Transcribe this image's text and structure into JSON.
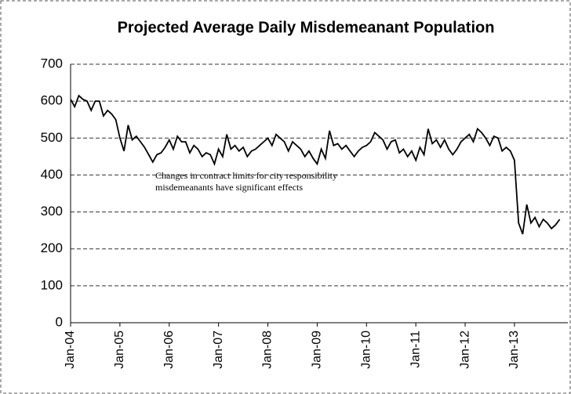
{
  "chart_data": {
    "type": "line",
    "title": "Projected Average Daily Misdemeanant Population",
    "annotation": [
      "Changes in contract limits for city responsibility",
      "misdemeanants have significant effects"
    ],
    "categories": [
      "Jan-04",
      null,
      null,
      null,
      null,
      null,
      null,
      null,
      null,
      null,
      null,
      null,
      "Jan-05",
      null,
      null,
      null,
      null,
      null,
      null,
      null,
      null,
      null,
      null,
      null,
      "Jan-06",
      null,
      null,
      null,
      null,
      null,
      null,
      null,
      null,
      null,
      null,
      null,
      "Jan-07",
      null,
      null,
      null,
      null,
      null,
      null,
      null,
      null,
      null,
      null,
      null,
      "Jan-08",
      null,
      null,
      null,
      null,
      null,
      null,
      null,
      null,
      null,
      null,
      null,
      "Jan-09",
      null,
      null,
      null,
      null,
      null,
      null,
      null,
      null,
      null,
      null,
      null,
      "Jan-10",
      null,
      null,
      null,
      null,
      null,
      null,
      null,
      null,
      null,
      null,
      null,
      "Jan-11",
      null,
      null,
      null,
      null,
      null,
      null,
      null,
      null,
      null,
      null,
      null,
      "Jan-12",
      null,
      null,
      null,
      null,
      null,
      null,
      null,
      null,
      null,
      null,
      null,
      "Jan-13",
      null,
      null,
      null,
      null,
      null,
      null,
      null,
      null,
      null,
      null,
      null
    ],
    "values": [
      605,
      585,
      615,
      605,
      600,
      575,
      600,
      600,
      560,
      575,
      565,
      550,
      500,
      465,
      535,
      495,
      505,
      490,
      475,
      455,
      435,
      455,
      460,
      475,
      495,
      470,
      505,
      490,
      490,
      460,
      480,
      470,
      450,
      460,
      455,
      430,
      470,
      450,
      510,
      470,
      480,
      465,
      475,
      450,
      465,
      470,
      480,
      490,
      500,
      480,
      510,
      500,
      490,
      465,
      490,
      480,
      470,
      450,
      465,
      445,
      430,
      470,
      445,
      520,
      480,
      485,
      470,
      480,
      465,
      450,
      465,
      475,
      480,
      490,
      515,
      505,
      495,
      470,
      490,
      495,
      460,
      470,
      450,
      465,
      440,
      475,
      455,
      525,
      485,
      495,
      475,
      495,
      470,
      455,
      470,
      490,
      500,
      510,
      490,
      525,
      515,
      500,
      480,
      505,
      500,
      465,
      475,
      465,
      440,
      270,
      240,
      320,
      270,
      285,
      260,
      280,
      270,
      255,
      265,
      280
    ],
    "color": "#000000",
    "ylim": [
      0,
      700
    ],
    "yticks": [
      0,
      100,
      200,
      300,
      400,
      500,
      600,
      700
    ],
    "grid": true
  }
}
